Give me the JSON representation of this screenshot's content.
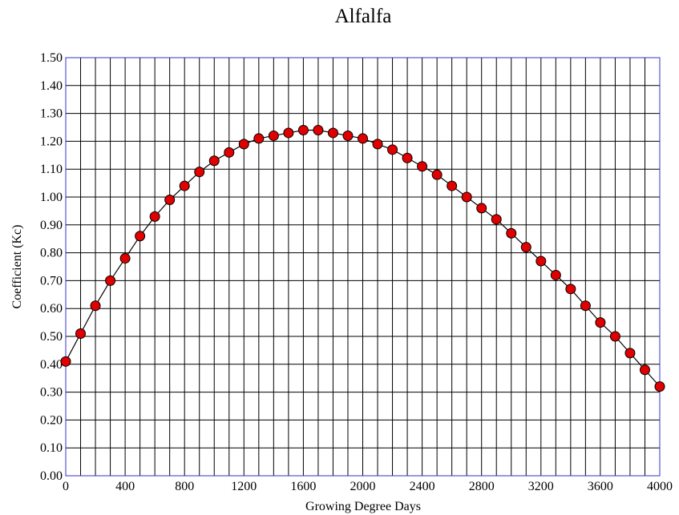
{
  "chart_data": {
    "type": "line",
    "title": "Alfalfa",
    "xlabel": "Growing Degree Days",
    "ylabel": "Coefficient (Kc)",
    "xlim": [
      0,
      4000
    ],
    "ylim": [
      0,
      1.5
    ],
    "x_tick_labels": [
      "0",
      "400",
      "800",
      "1200",
      "1600",
      "2000",
      "2400",
      "2800",
      "3200",
      "3600",
      "4000"
    ],
    "y_tick_labels": [
      "0.00",
      "0.10",
      "0.20",
      "0.30",
      "0.40",
      "0.50",
      "0.60",
      "0.70",
      "0.80",
      "0.90",
      "1.00",
      "1.10",
      "1.20",
      "1.30",
      "1.40",
      "1.50"
    ],
    "grid": true,
    "legend": "none",
    "series": [
      {
        "color": "#e00000",
        "line_color": "#000000",
        "marker": "circle",
        "x": [
          0,
          100,
          200,
          300,
          400,
          500,
          600,
          700,
          800,
          900,
          1000,
          1100,
          1200,
          1300,
          1400,
          1500,
          1600,
          1700,
          1800,
          1900,
          2000,
          2100,
          2200,
          2300,
          2400,
          2500,
          2600,
          2700,
          2800,
          2900,
          3000,
          3100,
          3200,
          3300,
          3400,
          3500,
          3600,
          3700,
          3800,
          3900,
          4000
        ],
        "y": [
          0.41,
          0.51,
          0.61,
          0.7,
          0.78,
          0.86,
          0.93,
          0.99,
          1.04,
          1.09,
          1.13,
          1.16,
          1.19,
          1.21,
          1.22,
          1.23,
          1.24,
          1.24,
          1.23,
          1.22,
          1.21,
          1.19,
          1.17,
          1.14,
          1.11,
          1.08,
          1.04,
          1.0,
          0.96,
          0.92,
          0.87,
          0.82,
          0.77,
          0.72,
          0.67,
          0.61,
          0.55,
          0.5,
          0.44,
          0.38,
          0.32
        ]
      }
    ],
    "colors": {
      "grid": "#000000",
      "frame": "#3333cc",
      "marker_fill": "#e00000",
      "marker_stroke": "#000000",
      "curve": "#000000"
    }
  }
}
